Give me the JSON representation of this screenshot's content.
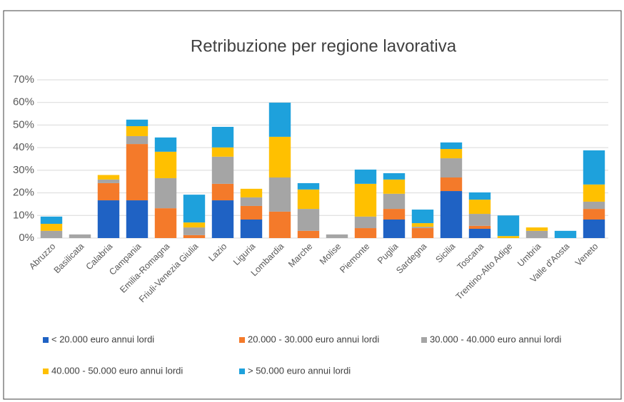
{
  "chart_data": {
    "type": "stacked_bar",
    "title": "Retribuzione per regione lavorativa",
    "categories": [
      "Abruzzo",
      "Basilicata",
      "Calabria",
      "Campania",
      "Emilia-Romagna",
      "Friuli-Venezia Giulia",
      "Lazio",
      "Liguria",
      "Lombardia",
      "Marche",
      "Molise",
      "Piemonte",
      "Puglia",
      "Sardegna",
      "Sicilia",
      "Toscana",
      "Trentino-Alto Adige",
      "Umbria",
      "Valle d'Aosta",
      "Veneto"
    ],
    "series": [
      {
        "name": "< 20.000 euro annui lordi",
        "color": "#1f62c4",
        "values": [
          0,
          0,
          16.7,
          16.7,
          0,
          0,
          16.7,
          8.2,
          0,
          0,
          0,
          0,
          8.2,
          0,
          20.8,
          4.1,
          0,
          0,
          0,
          8.2
        ]
      },
      {
        "name": "20.000 - 30.000 euro annui lordi",
        "color": "#f47a2a",
        "values": [
          0,
          0,
          7.6,
          24.9,
          13.2,
          1.3,
          7.3,
          6,
          11.7,
          3.2,
          0,
          4.4,
          4.7,
          4.4,
          6,
          1.3,
          0,
          0,
          0,
          4.7
        ]
      },
      {
        "name": "30.000 - 40.000 euro annui lordi",
        "color": "#a5a5a5",
        "values": [
          3.2,
          1.6,
          1.6,
          3.5,
          13.3,
          3.4,
          12,
          3.8,
          15.1,
          9.7,
          1.6,
          5.1,
          6.7,
          0.6,
          8.5,
          5.3,
          0,
          3.2,
          0,
          3.2
        ]
      },
      {
        "name": "40.000 - 50.000 euro annui lordi",
        "color": "#ffc000",
        "values": [
          3.1,
          0,
          2,
          4.4,
          11.7,
          2.2,
          4.1,
          3.8,
          18,
          8.6,
          0,
          14.5,
          6.3,
          1.6,
          4.1,
          6.3,
          0.9,
          1.5,
          0,
          7.6
        ]
      },
      {
        "name": "> 50.000 euro annui lordi",
        "color": "#1ea1dc",
        "values": [
          3.2,
          0,
          0,
          2.9,
          6.3,
          12.3,
          9.1,
          0,
          15.1,
          2.8,
          0,
          6.3,
          2.8,
          6,
          2.9,
          3.2,
          9.1,
          0,
          3.2,
          15.1
        ]
      }
    ],
    "ylim": [
      0,
      70
    ],
    "yticks": [
      {
        "value": 0,
        "label": "0%"
      },
      {
        "value": 10,
        "label": "10%"
      },
      {
        "value": 20,
        "label": "20%"
      },
      {
        "value": 30,
        "label": "30%"
      },
      {
        "value": 40,
        "label": "40%"
      },
      {
        "value": 50,
        "label": "50%"
      },
      {
        "value": 60,
        "label": "60%"
      },
      {
        "value": 70,
        "label": "70%"
      }
    ],
    "grid": true
  }
}
